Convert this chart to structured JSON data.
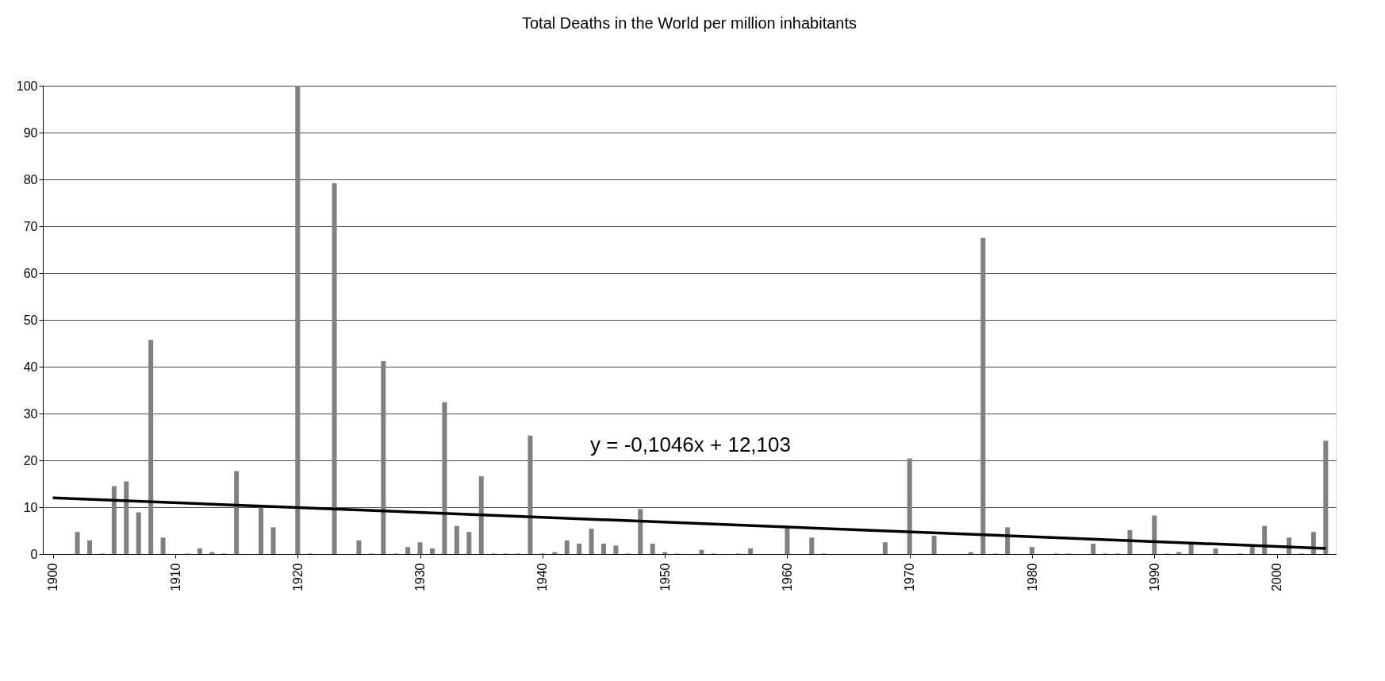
{
  "chart_data": {
    "type": "bar",
    "title": "Total Deaths in the World per million inhabitants",
    "x": [
      1900,
      1901,
      1902,
      1903,
      1904,
      1905,
      1906,
      1907,
      1908,
      1909,
      1910,
      1911,
      1912,
      1913,
      1914,
      1915,
      1916,
      1917,
      1918,
      1919,
      1920,
      1921,
      1922,
      1923,
      1924,
      1925,
      1926,
      1927,
      1928,
      1929,
      1930,
      1931,
      1932,
      1933,
      1934,
      1935,
      1936,
      1937,
      1938,
      1939,
      1940,
      1941,
      1942,
      1943,
      1944,
      1945,
      1946,
      1947,
      1948,
      1949,
      1950,
      1951,
      1952,
      1953,
      1954,
      1955,
      1956,
      1957,
      1958,
      1959,
      1960,
      1961,
      1962,
      1963,
      1964,
      1965,
      1966,
      1967,
      1968,
      1969,
      1970,
      1971,
      1972,
      1973,
      1974,
      1975,
      1976,
      1977,
      1978,
      1979,
      1980,
      1981,
      1982,
      1983,
      1984,
      1985,
      1986,
      1987,
      1988,
      1989,
      1990,
      1991,
      1992,
      1993,
      1994,
      1995,
      1996,
      1997,
      1998,
      1999,
      2000,
      2001,
      2002,
      2003,
      2004
    ],
    "series": [
      {
        "color": "#808080",
        "values": [
          0,
          0,
          4.7,
          2.9,
          0.1,
          14.5,
          15.5,
          8.9,
          45.7,
          3.5,
          0,
          0.1,
          1.2,
          0.4,
          0.1,
          17.7,
          0,
          10,
          5.7,
          0,
          100,
          0.1,
          0,
          79.2,
          0,
          2.9,
          0.1,
          41.2,
          0.1,
          1.5,
          2.5,
          1.2,
          32.4,
          6.0,
          4.7,
          16.6,
          0.1,
          0.1,
          0.1,
          25.3,
          0.1,
          0.4,
          2.9,
          2.2,
          5.4,
          2.2,
          1.8,
          0.1,
          9.6,
          2.2,
          0.4,
          0.1,
          0,
          0.9,
          0.1,
          0,
          0.1,
          1.2,
          0,
          0,
          5.7,
          0,
          3.5,
          0.1,
          0,
          0,
          0,
          0,
          2.5,
          0,
          20.4,
          0,
          3.9,
          0,
          0,
          0.4,
          67.5,
          0.1,
          5.7,
          0,
          1.5,
          0,
          0.1,
          0.1,
          0,
          2.2,
          0.1,
          0.1,
          5.1,
          0,
          8.2,
          0.1,
          0.4,
          2.2,
          0,
          1.2,
          0,
          0.1,
          1.5,
          6.0,
          0,
          3.5,
          0.1,
          4.7,
          24.2
        ]
      },
      {
        "type": "line",
        "color": "#000000",
        "x": [
          1900,
          2004
        ],
        "values": [
          12.0,
          1.2
        ]
      }
    ],
    "xlim": [
      1899.5,
      2004.5
    ],
    "xticks": [
      1900,
      1910,
      1920,
      1930,
      1940,
      1950,
      1960,
      1970,
      1980,
      1990,
      2000
    ],
    "ylim": [
      0,
      100
    ],
    "yticks": [
      0,
      10,
      20,
      30,
      40,
      50,
      60,
      70,
      80,
      90,
      100
    ],
    "grid": "y",
    "annotations": [
      "y = -0,1046x + 12,103"
    ]
  }
}
